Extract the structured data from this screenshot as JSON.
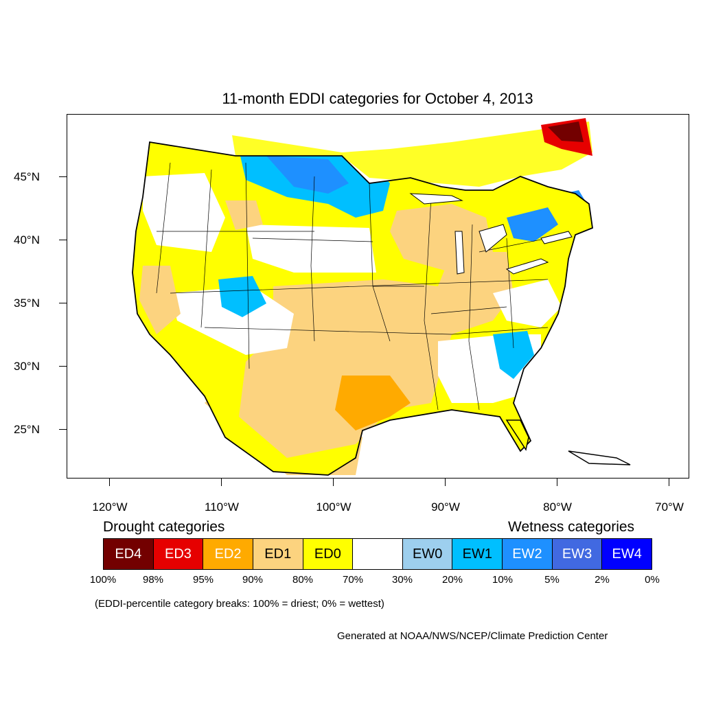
{
  "title": "11-month EDDI categories for October 4, 2013",
  "colors": {
    "ED4": "#730000",
    "ED3": "#e60000",
    "ED2": "#ffaa00",
    "ED1": "#fcd37f",
    "ED0": "#ffff00",
    "neutral": "#ffffff",
    "EW0": "#9dcfee",
    "EW1": "#00bfff",
    "EW2": "#1e90ff",
    "EW3": "#4169e1",
    "EW4": "#0000ff"
  },
  "lat_labels": [
    "45°N",
    "40°N",
    "35°N",
    "30°N",
    "25°N"
  ],
  "lon_labels": [
    "120°W",
    "110°W",
    "100°W",
    "90°W",
    "80°W",
    "70°W"
  ],
  "legend": {
    "drought_title": "Drought categories",
    "wetness_title": "Wetness categories",
    "categories": [
      "ED4",
      "ED3",
      "ED2",
      "ED1",
      "ED0",
      "",
      "EW0",
      "EW1",
      "EW2",
      "EW3",
      "EW4"
    ],
    "breaks": [
      "100%",
      "98%",
      "95%",
      "90%",
      "80%",
      "70%",
      "30%",
      "20%",
      "10%",
      "5%",
      "2%",
      "0%"
    ],
    "note": "(EDDI-percentile category breaks: 100% = driest; 0% = wettest)"
  },
  "credit": "Generated at NOAA/NWS/NCEP/Climate Prediction Center"
}
